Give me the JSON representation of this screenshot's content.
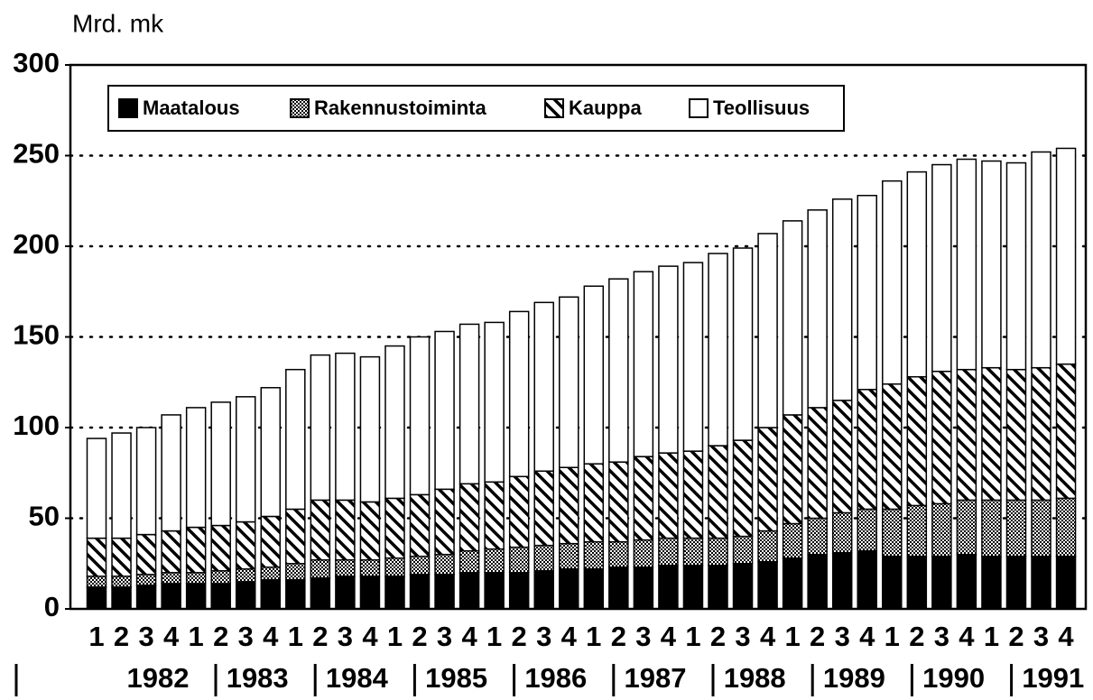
{
  "chart_data": {
    "type": "stacked_bar",
    "y_label": "Mrd. mk",
    "categories": [
      "1",
      "2",
      "3",
      "4",
      "1",
      "2",
      "3",
      "4",
      "1",
      "2",
      "3",
      "4",
      "1",
      "2",
      "3",
      "4",
      "1",
      "2",
      "3",
      "4",
      "1",
      "2",
      "3",
      "4",
      "1",
      "2",
      "3",
      "4",
      "1",
      "2",
      "3",
      "4",
      "1",
      "2",
      "3",
      "4",
      "1",
      "2",
      "3",
      "4"
    ],
    "groups": [
      "1982",
      "1983",
      "1984",
      "1985",
      "1986",
      "1987",
      "1988",
      "1989",
      "1990",
      "1991"
    ],
    "series": [
      {
        "name": "Maatalous",
        "color": "#000000",
        "hatch": "solid",
        "values": [
          12,
          12,
          13,
          14,
          14,
          14,
          15,
          16,
          16,
          17,
          18,
          18,
          18,
          19,
          19,
          20,
          20,
          20,
          21,
          22,
          22,
          23,
          23,
          24,
          24,
          24,
          25,
          26,
          28,
          30,
          31,
          32,
          29,
          29,
          29,
          30,
          29,
          29,
          29,
          29
        ]
      },
      {
        "name": "Rakennustoiminta",
        "color": "#000000",
        "hatch": "dots",
        "values": [
          6,
          6,
          6,
          6,
          6,
          7,
          7,
          7,
          9,
          10,
          9,
          9,
          10,
          10,
          11,
          12,
          13,
          14,
          14,
          14,
          15,
          14,
          15,
          15,
          15,
          15,
          15,
          17,
          19,
          20,
          22,
          23,
          26,
          28,
          29,
          30,
          31,
          31,
          31,
          32
        ]
      },
      {
        "name": "Kauppa",
        "color": "#000000",
        "hatch": "diagonal",
        "values": [
          21,
          21,
          22,
          23,
          25,
          25,
          26,
          28,
          30,
          33,
          33,
          32,
          33,
          34,
          36,
          37,
          37,
          39,
          41,
          42,
          43,
          44,
          46,
          47,
          48,
          51,
          53,
          57,
          60,
          61,
          62,
          66,
          69,
          71,
          73,
          72,
          73,
          72,
          73,
          74
        ]
      },
      {
        "name": "Teollisuus",
        "color": "#ffffff",
        "hatch": "none",
        "values": [
          55,
          58,
          59,
          64,
          66,
          68,
          69,
          71,
          77,
          80,
          81,
          80,
          84,
          87,
          87,
          88,
          88,
          91,
          93,
          94,
          98,
          101,
          102,
          103,
          104,
          106,
          106,
          107,
          107,
          109,
          111,
          107,
          112,
          113,
          114,
          116,
          114,
          114,
          119,
          119
        ]
      }
    ],
    "ylim": [
      0,
      300
    ],
    "yticks": [
      0,
      50,
      100,
      150,
      200,
      250,
      300
    ],
    "grid": true
  }
}
